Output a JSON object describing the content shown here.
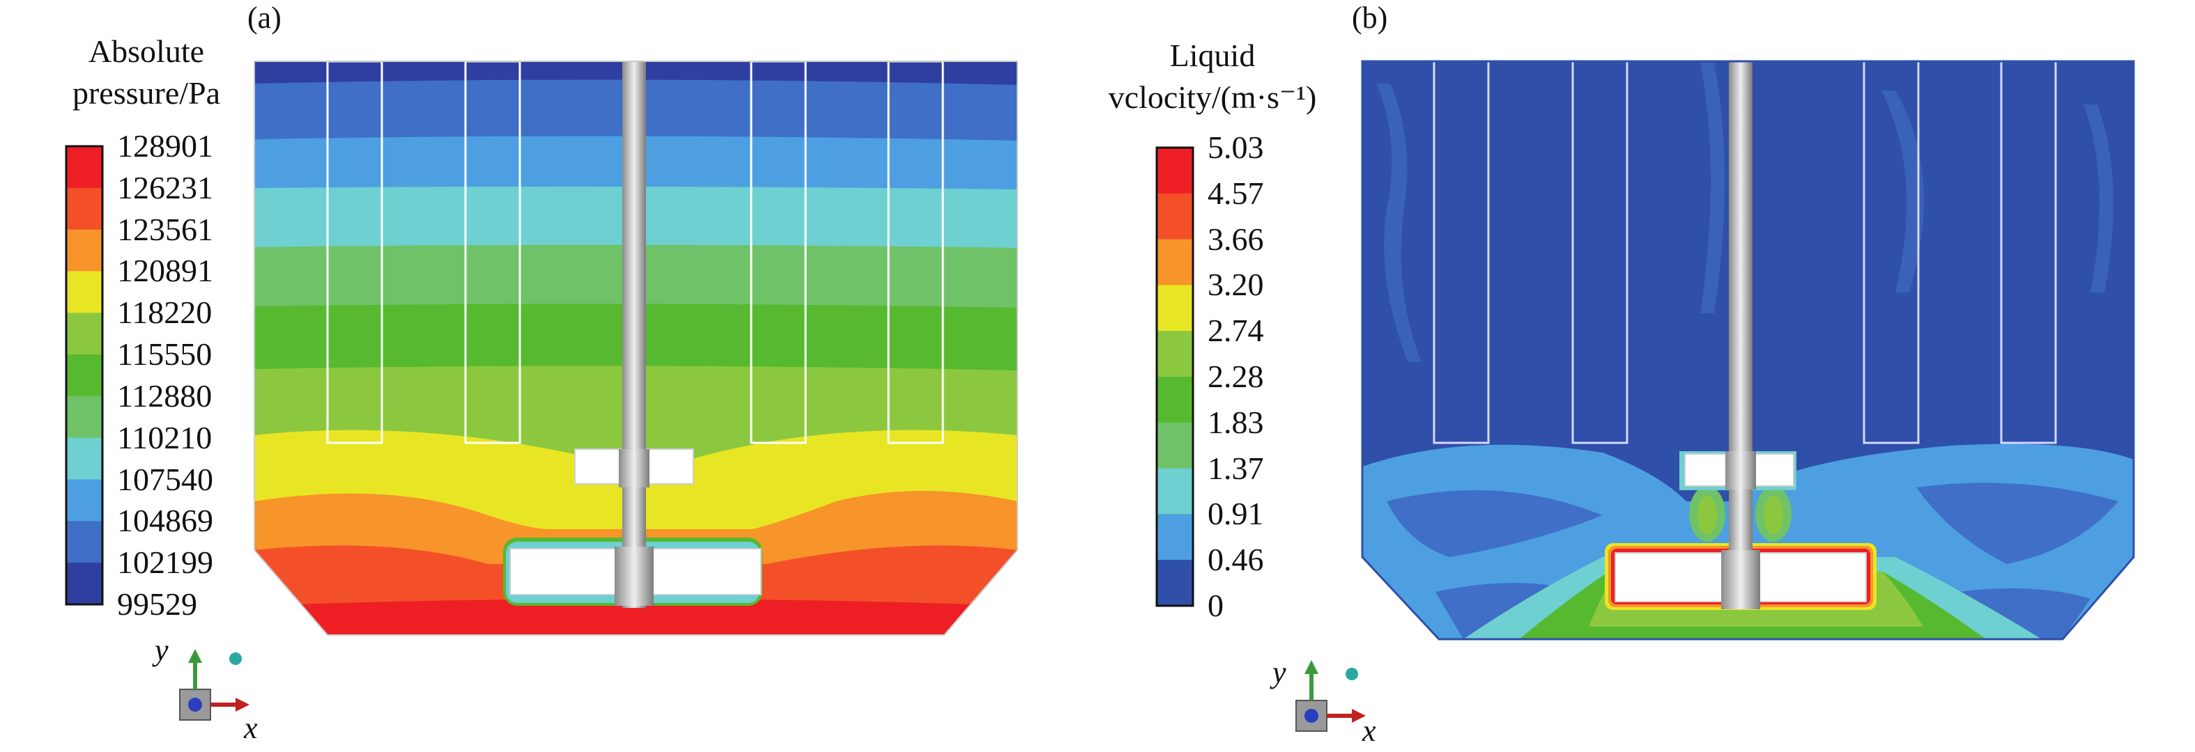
{
  "panel_a": {
    "label": "(a)",
    "legend_title_1": "Absolute",
    "legend_title_2": "pressure/Pa",
    "ticks": [
      "128901",
      "126231",
      "123561",
      "120891",
      "118220",
      "115550",
      "112880",
      "110210",
      "107540",
      "104869",
      "102199",
      "99529"
    ],
    "band_colors": [
      "#ee1f24",
      "#f3502a",
      "#f7942a",
      "#e8e624",
      "#8cc83f",
      "#56b92f",
      "#6fc267",
      "#6ed0d0",
      "#4d9fe1",
      "#3f6fc6",
      "#2f3f9f"
    ],
    "axis_x": "x",
    "axis_y": "y"
  },
  "panel_b": {
    "label": "(b)",
    "legend_title_1": "Liquid",
    "legend_title_2": "vclocity/(m·s⁻¹)",
    "ticks": [
      "5.03",
      "4.57",
      "3.66",
      "3.20",
      "2.74",
      "2.28",
      "1.83",
      "1.37",
      "0.91",
      "0.46",
      "0"
    ],
    "band_colors": [
      "#ee1f24",
      "#f3502a",
      "#f7942a",
      "#e8e624",
      "#8cc83f",
      "#56b92f",
      "#6fc267",
      "#6ed0d0",
      "#4d9fe1",
      "#2f4fa8"
    ],
    "axis_x": "x",
    "axis_y": "y"
  }
}
